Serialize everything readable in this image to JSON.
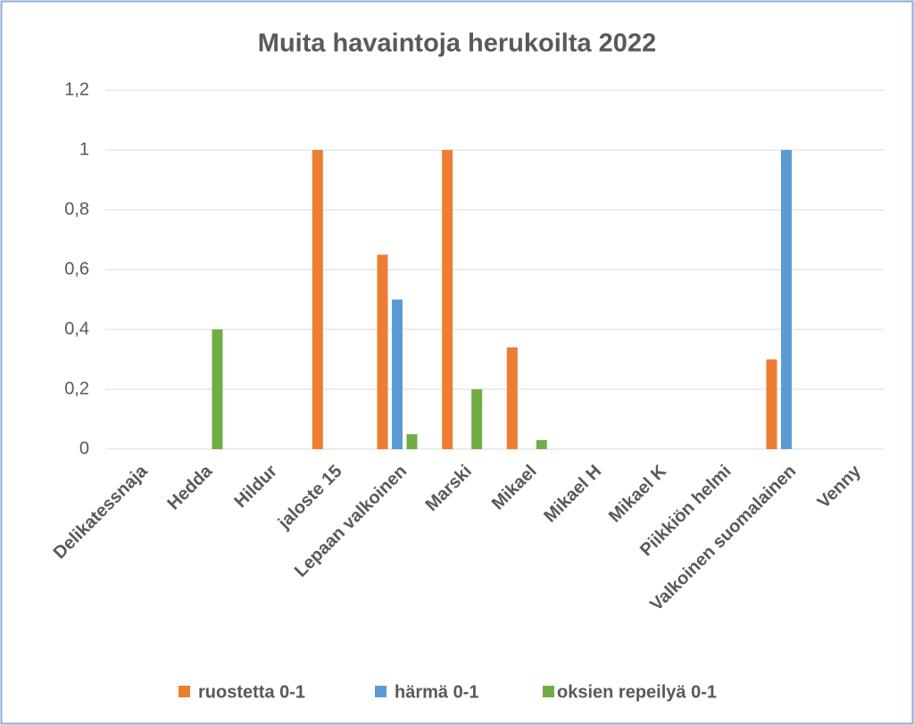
{
  "chart_data": {
    "type": "bar",
    "title": "Muita havaintoja herukoilta 2022",
    "categories": [
      "Delikatessnaja",
      "Hedda",
      "Hildur",
      "jaloste 15",
      "Lepaan valkoinen",
      "Marski",
      "Mikael",
      "Mikael H",
      "Mikael K",
      "Piikkiön helmi",
      "Valkoinen suomalainen",
      "Venny"
    ],
    "series": [
      {
        "name": "ruostetta 0-1",
        "color": "#ed7d31",
        "values": [
          0,
          0,
          0,
          1,
          0.65,
          1,
          0.34,
          0,
          0,
          0,
          0.3,
          0
        ]
      },
      {
        "name": "härmä 0-1",
        "color": "#5b9bd5",
        "values": [
          0,
          0,
          0,
          0,
          0.5,
          0,
          0,
          0,
          0,
          0,
          1,
          0
        ]
      },
      {
        "name": "oksien repeilyä 0-1",
        "color": "#70ad47",
        "values": [
          0,
          0.4,
          0,
          0,
          0.05,
          0.2,
          0.03,
          0,
          0,
          0,
          0,
          0
        ]
      }
    ],
    "ylim": [
      0,
      1.2
    ],
    "yticks": [
      0,
      {
        "value": 0.2,
        "label": "0,2"
      },
      {
        "value": 0.4,
        "label": "0,4"
      },
      {
        "value": 0.6,
        "label": "0,6"
      },
      {
        "value": 0.8,
        "label": "0,8"
      },
      1,
      {
        "value": 1.2,
        "label": "1,2"
      }
    ],
    "grid": true,
    "legend": "bottom"
  }
}
